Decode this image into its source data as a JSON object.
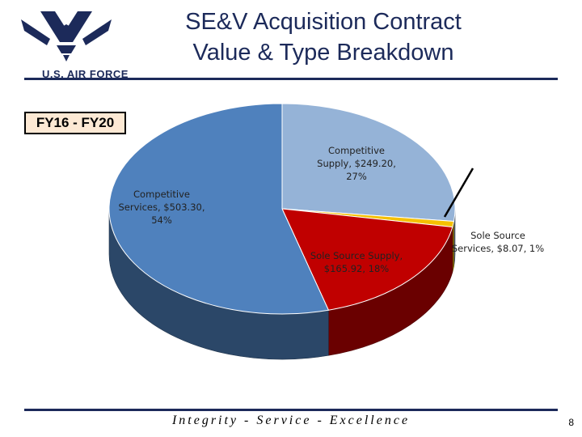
{
  "header": {
    "logo_text": "U.S. AIR FORCE",
    "title_line1": "SE&V Acquisition Contract",
    "title_line2": "Value & Type Breakdown"
  },
  "period_label": "FY16 - FY20",
  "chart_data": {
    "type": "pie",
    "title": "",
    "slices": [
      {
        "label": "Competitive Supply",
        "value": 249.2,
        "percent": 27,
        "color": "#95b3d7",
        "label_line1": "Competitive",
        "label_line2": "Supply, $249.20,",
        "label_line3": "27%"
      },
      {
        "label": "Sole Source Services",
        "value": 8.07,
        "percent": 1,
        "color": "#f5c000",
        "label_line1": "Sole Source",
        "label_line2": "Services, $8.07, 1%",
        "label_line3": ""
      },
      {
        "label": "Sole Source Supply",
        "value": 165.92,
        "percent": 18,
        "color": "#c00000",
        "label_line1": "Sole Source Supply,",
        "label_line2": "$165.92, 18%",
        "label_line3": ""
      },
      {
        "label": "Competitive Services",
        "value": 503.3,
        "percent": 54,
        "color": "#4f81bd",
        "label_line1": "Competitive",
        "label_line2": "Services, $503.30,",
        "label_line3": "54%"
      }
    ]
  },
  "footer": {
    "motto": "Integrity - Service - Excellence",
    "page_number": "8"
  }
}
